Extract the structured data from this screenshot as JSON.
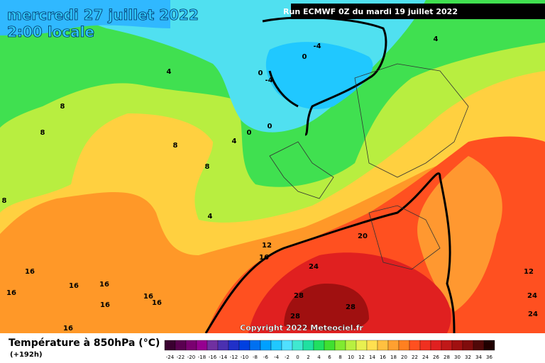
{
  "header": {
    "date": "mercredi 27 juillet 2022",
    "time": "2:00 locale",
    "run": "Run ECMWF 0Z du mardi 19 juillet 2022"
  },
  "map": {
    "contour_labels": [
      "4",
      "8",
      "8",
      "8",
      "8",
      "4",
      "4",
      "8",
      "0",
      "-4",
      "-4",
      "0",
      "0",
      "0",
      "4",
      "20",
      "12",
      "16",
      "24",
      "28",
      "28",
      "28",
      "16",
      "16",
      "16",
      "16",
      "16",
      "16",
      "16",
      "16",
      "12",
      "24",
      "24"
    ],
    "copyright": "Copyright 2022 Meteociel.fr"
  },
  "legend": {
    "title": "Température à 850hPa (°C)",
    "subtitle": "(+192h)",
    "scale": [
      {
        "label": "-24",
        "color": "#3a0030"
      },
      {
        "label": "-22",
        "color": "#5a0050"
      },
      {
        "label": "-20",
        "color": "#7a0070"
      },
      {
        "label": "-18",
        "color": "#960090"
      },
      {
        "label": "-16",
        "color": "#7030a0"
      },
      {
        "label": "-14",
        "color": "#4b30b0"
      },
      {
        "label": "-12",
        "color": "#2030c8"
      },
      {
        "label": "-10",
        "color": "#0040e0"
      },
      {
        "label": "-8",
        "color": "#0070f0"
      },
      {
        "label": "-6",
        "color": "#00a0ff"
      },
      {
        "label": "-4",
        "color": "#20c8ff"
      },
      {
        "label": "-2",
        "color": "#50e0ff"
      },
      {
        "label": "0",
        "color": "#40e8d0"
      },
      {
        "label": "2",
        "color": "#20e0a0"
      },
      {
        "label": "4",
        "color": "#20e060"
      },
      {
        "label": "6",
        "color": "#40e030"
      },
      {
        "label": "8",
        "color": "#80ea30"
      },
      {
        "label": "10",
        "color": "#b8f040"
      },
      {
        "label": "12",
        "color": "#e8f050"
      },
      {
        "label": "14",
        "color": "#ffe050"
      },
      {
        "label": "16",
        "color": "#ffc040"
      },
      {
        "label": "18",
        "color": "#ffa030"
      },
      {
        "label": "20",
        "color": "#ff8020"
      },
      {
        "label": "22",
        "color": "#ff5020"
      },
      {
        "label": "24",
        "color": "#f03020"
      },
      {
        "label": "26",
        "color": "#e02020"
      },
      {
        "label": "28",
        "color": "#c01818"
      },
      {
        "label": "30",
        "color": "#a01010"
      },
      {
        "label": "32",
        "color": "#800c0c"
      },
      {
        "label": "34",
        "color": "#500808"
      },
      {
        "label": "36",
        "color": "#200000"
      }
    ]
  }
}
